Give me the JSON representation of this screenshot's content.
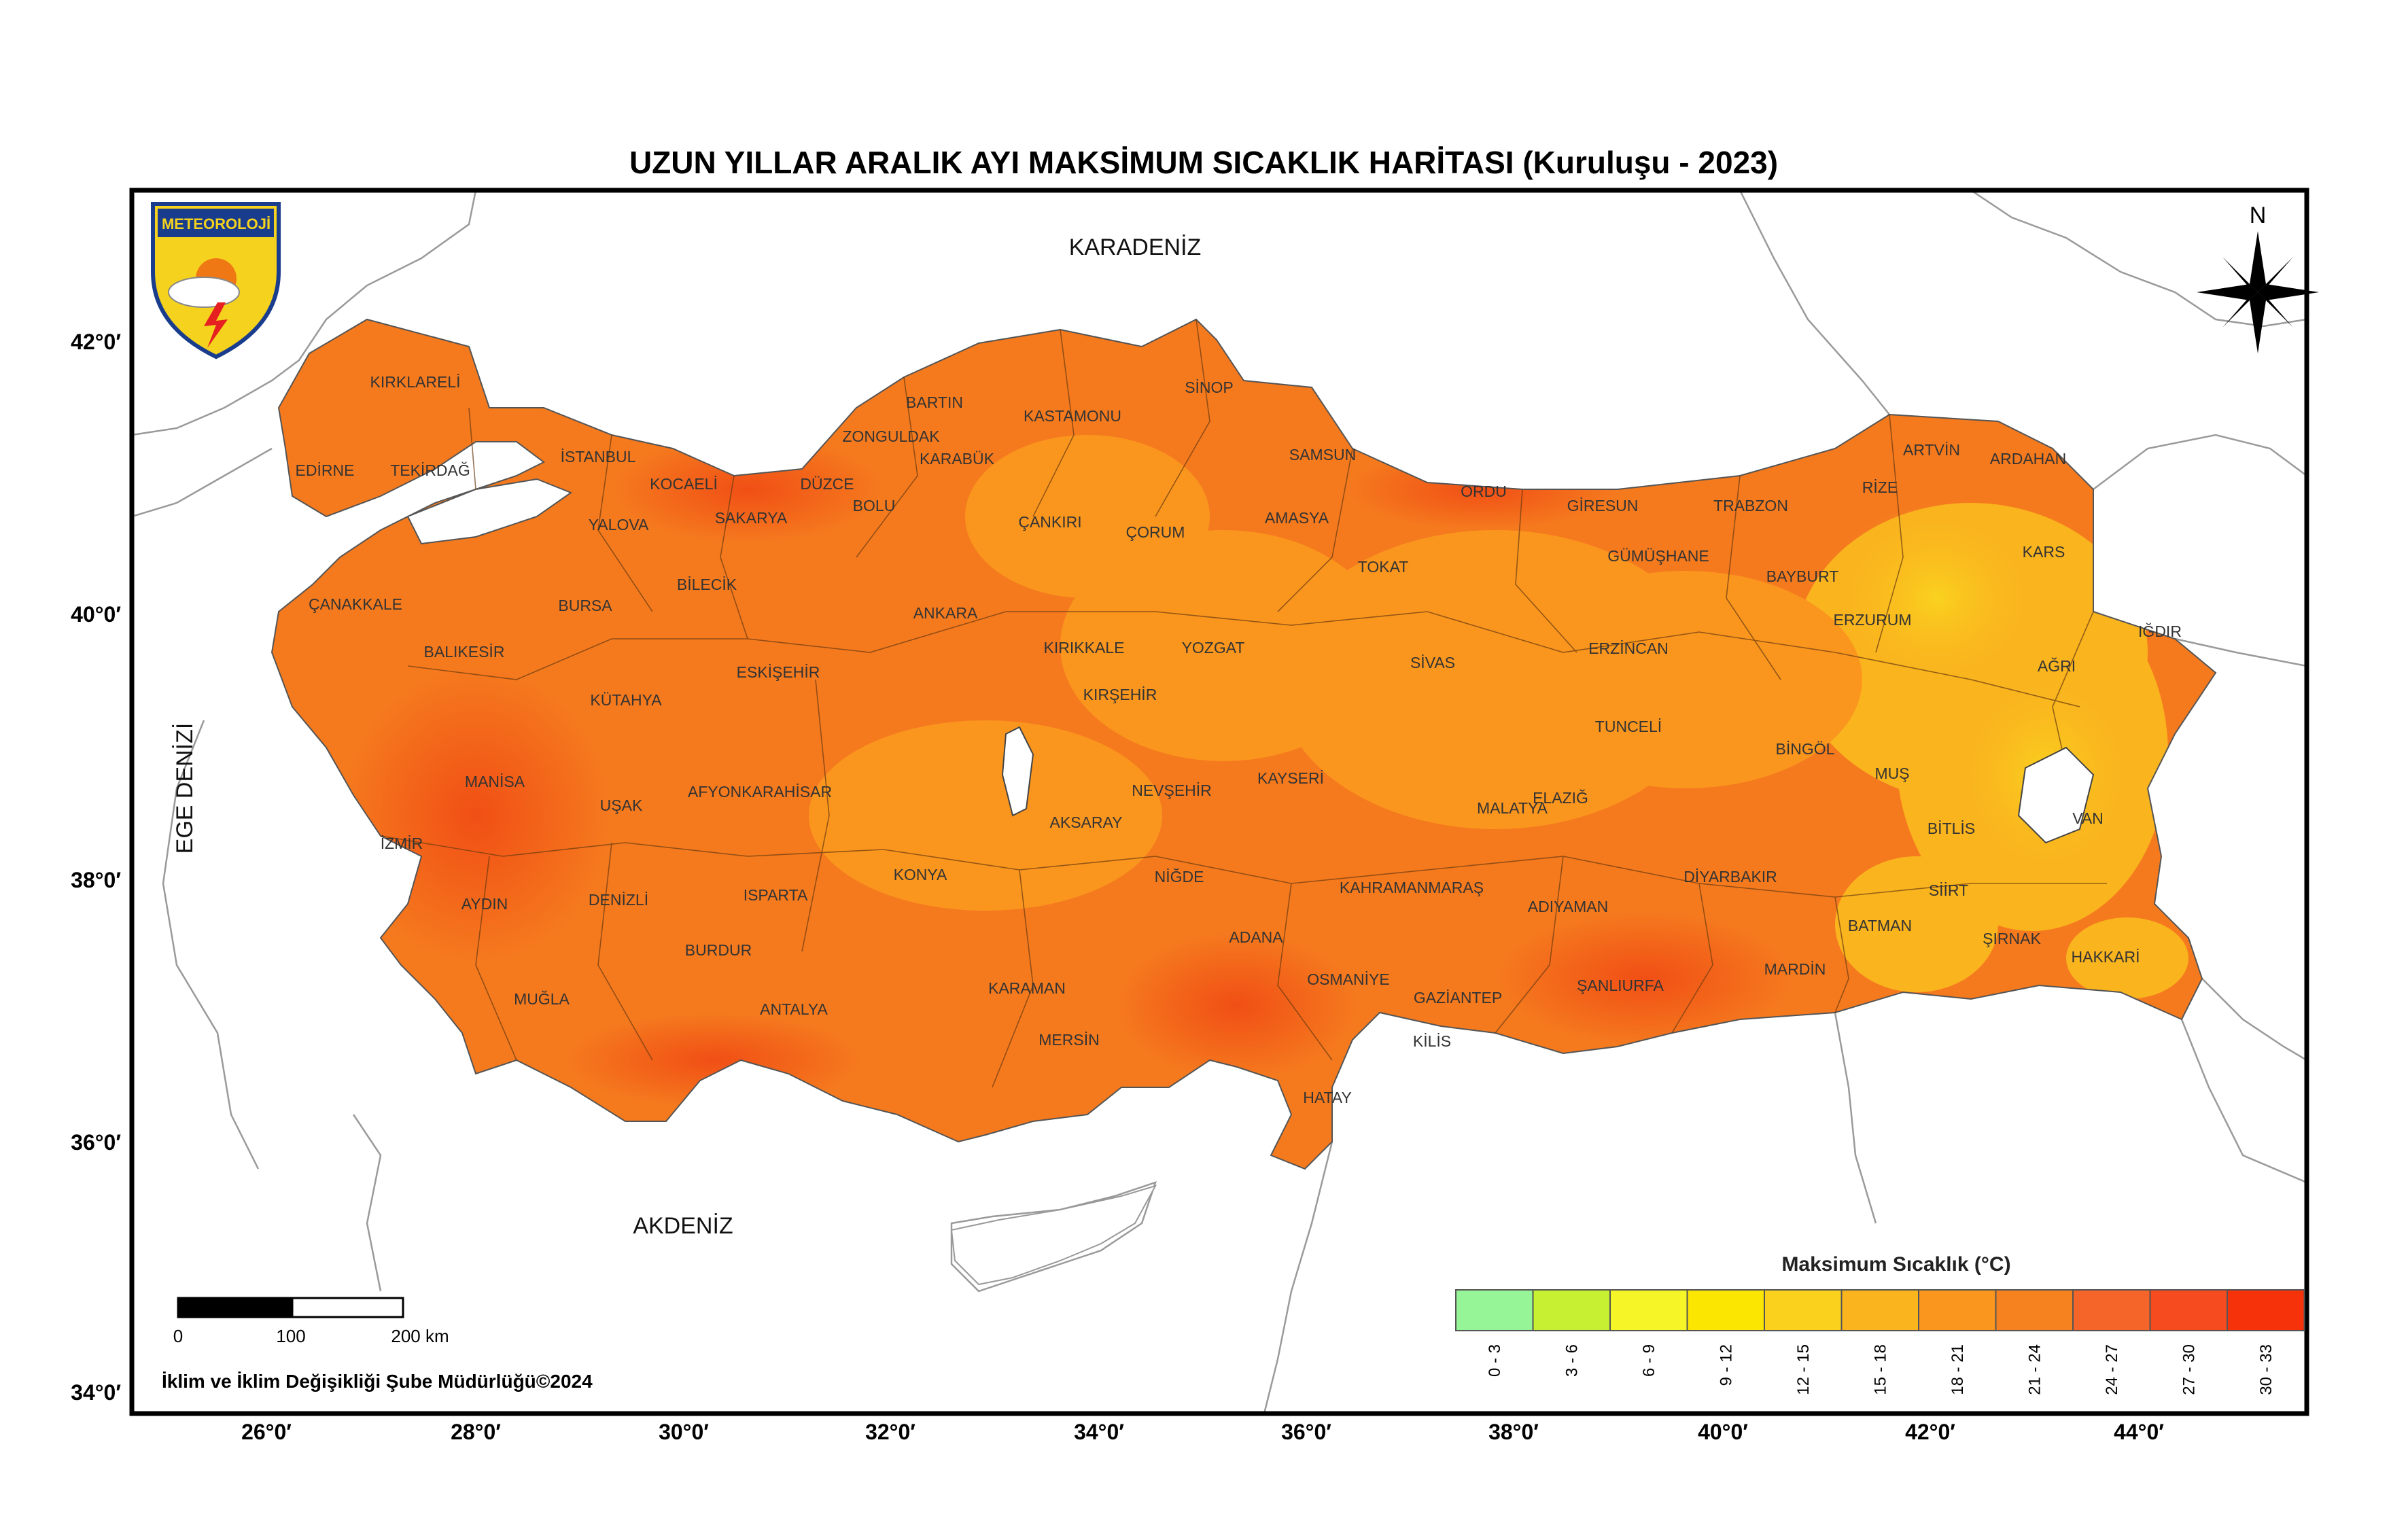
{
  "title": "UZUN YILLAR ARALIK AYI MAKSİMUM SICAKLIK HARİTASI (Kuruluşu - 2023)",
  "logo": {
    "text": "METEOROLOJİ",
    "icon": "meteoroloji-emblem-icon"
  },
  "compass": {
    "label": "N",
    "icon": "north-arrow-icon"
  },
  "seas": {
    "black_sea": "KARADENİZ",
    "mediterranean": "AKDENİZ",
    "aegean": "EGE DENİZİ"
  },
  "lat_labels": [
    "42°0′",
    "40°0′",
    "38°0′",
    "36°0′",
    "34°0′"
  ],
  "lon_labels": [
    "26°0′",
    "28°0′",
    "30°0′",
    "32°0′",
    "34°0′",
    "36°0′",
    "38°0′",
    "40°0′",
    "42°0′",
    "44°0′"
  ],
  "provinces": [
    "KIRKLARELİ",
    "EDİRNE",
    "TEKİRDAĞ",
    "İSTANBUL",
    "KOCAELİ",
    "YALOVA",
    "SAKARYA",
    "DÜZCE",
    "ZONGULDAK",
    "BARTIN",
    "KARABÜK",
    "BOLU",
    "KASTAMONU",
    "SİNOP",
    "SAMSUN",
    "ORDU",
    "GİRESUN",
    "TRABZON",
    "RİZE",
    "ARTVİN",
    "ARDAHAN",
    "KARS",
    "IĞDIR",
    "AĞRI",
    "ERZURUM",
    "BAYBURT",
    "GÜMÜŞHANE",
    "ERZİNCAN",
    "TUNCELİ",
    "BİNGÖL",
    "MUŞ",
    "BİTLİS",
    "VAN",
    "HAKKARİ",
    "ŞIRNAK",
    "SİİRT",
    "BATMAN",
    "MARDİN",
    "DİYARBAKIR",
    "ELAZIĞ",
    "MALATYA",
    "ADIYAMAN",
    "ŞANLIURFA",
    "GAZİANTEP",
    "KİLİS",
    "HATAY",
    "OSMANİYE",
    "ADANA",
    "KAHRAMANMARAŞ",
    "MERSİN",
    "KARAMAN",
    "NİĞDE",
    "KAYSERİ",
    "NEVŞEHİR",
    "AKSARAY",
    "KONYA",
    "ANTALYA",
    "BURDUR",
    "ISPARTA",
    "DENİZLİ",
    "MUĞLA",
    "AYDIN",
    "İZMİR",
    "MANİSA",
    "UŞAK",
    "AFYONKARAHİSAR",
    "KÜTAHYA",
    "ESKİŞEHİR",
    "BİLECİK",
    "BURSA",
    "BALIKESİR",
    "ÇANAKKALE",
    "ANKARA",
    "KIRIKKALE",
    "KIRŞEHİR",
    "YOZGAT",
    "ÇANKIRI",
    "ÇORUM",
    "AMASYA",
    "TOKAT",
    "SİVAS"
  ],
  "legend": {
    "title": "Maksimum Sıcaklık (°C)",
    "classes": [
      {
        "label": "0 - 3",
        "color": "#96f596"
      },
      {
        "label": "3 - 6",
        "color": "#c8f032"
      },
      {
        "label": "6 - 9",
        "color": "#f5f528"
      },
      {
        "label": "9 - 12",
        "color": "#fae600"
      },
      {
        "label": "12 - 15",
        "color": "#fad21e"
      },
      {
        "label": "15 - 18",
        "color": "#fab41e"
      },
      {
        "label": "18 - 21",
        "color": "#fa961e"
      },
      {
        "label": "21 - 24",
        "color": "#f5821e"
      },
      {
        "label": "24 - 27",
        "color": "#f56428"
      },
      {
        "label": "27 - 30",
        "color": "#f54b1e"
      },
      {
        "label": "30 - 33",
        "color": "#f5320a"
      }
    ]
  },
  "scale_bar": {
    "labels": [
      "0",
      "100",
      "200 km"
    ]
  },
  "credit": "İklim ve İklim Değişikliği Şube Müdürlüğü©2024"
}
